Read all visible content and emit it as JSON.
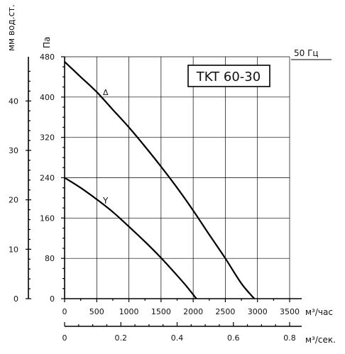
{
  "chart_data": {
    "type": "line",
    "title": "TKT 60-30",
    "frequency_label": "50 Гц",
    "ylabel": "Па",
    "ylabel_secondary": "мм вод.ст.",
    "xlabel": "м³/час",
    "xlabel_secondary": "м³/сек.",
    "ylim": [
      0,
      480
    ],
    "xlim": [
      0,
      3500
    ],
    "x2lim": [
      0,
      0.8
    ],
    "y_ticks": [
      0,
      80,
      160,
      240,
      320,
      400,
      480
    ],
    "y_tick_labels": [
      "0",
      "80",
      "160",
      "240",
      "320",
      "400",
      "480"
    ],
    "y2_ticks": [
      0,
      10,
      20,
      30,
      40
    ],
    "y2_tick_labels": [
      "0",
      "10",
      "20",
      "30",
      "40"
    ],
    "x_ticks": [
      0,
      500,
      1000,
      1500,
      2000,
      2500,
      3000,
      3500
    ],
    "x_tick_labels": [
      "0",
      "500",
      "1000",
      "1500",
      "2000",
      "2500",
      "3000",
      "3500"
    ],
    "x2_ticks": [
      0,
      0.2,
      0.4,
      0.6,
      0.8
    ],
    "x2_tick_labels": [
      "0",
      "0.2",
      "0.4",
      "0.6",
      "0.8"
    ],
    "grid": true,
    "series": [
      {
        "name": "Δ",
        "x": [
          0,
          250,
          500,
          750,
          1000,
          1250,
          1500,
          1750,
          2000,
          2250,
          2500,
          2750,
          2950
        ],
        "y": [
          470,
          440,
          410,
          375,
          340,
          302,
          262,
          220,
          175,
          127,
          80,
          30,
          0
        ]
      },
      {
        "name": "Y",
        "x": [
          0,
          250,
          500,
          750,
          1000,
          1250,
          1500,
          1750,
          1900,
          2050
        ],
        "y": [
          240,
          220,
          197,
          172,
          143,
          113,
          81,
          46,
          24,
          0
        ]
      }
    ]
  }
}
